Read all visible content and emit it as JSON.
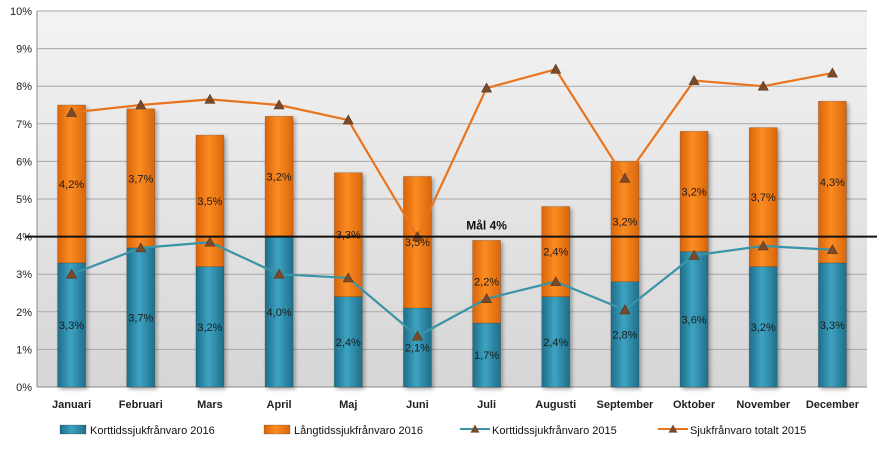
{
  "chart_data": {
    "type": "bar",
    "stacked": true,
    "categories": [
      "Januari",
      "Februari",
      "Mars",
      "April",
      "Maj",
      "Juni",
      "Juli",
      "Augusti",
      "September",
      "Oktober",
      "November",
      "December"
    ],
    "series": [
      {
        "name": "Korttidssjukfrånvaro 2016",
        "kind": "bar",
        "color": "#2e8aa8",
        "values": [
          3.3,
          3.7,
          3.2,
          4.0,
          2.4,
          2.1,
          1.7,
          2.4,
          2.8,
          3.6,
          3.2,
          3.3
        ],
        "labels": [
          "3,3%",
          "3,7%",
          "3,2%",
          "4,0%",
          "2,4%",
          "2,1%",
          "1,7%",
          "2,4%",
          "2,8%",
          "3,6%",
          "3,2%",
          "3,3%"
        ]
      },
      {
        "name": "Långtidssjukfrånvaro 2016",
        "kind": "bar",
        "color": "#f07d14",
        "values": [
          4.2,
          3.7,
          3.5,
          3.2,
          3.3,
          3.5,
          2.2,
          2.4,
          3.2,
          3.2,
          3.7,
          4.3
        ],
        "labels": [
          "4,2%",
          "3,7%",
          "3,5%",
          "3,2%",
          "3,3%",
          "3,5%",
          "2,2%",
          "2,4%",
          "3,2%",
          "3,2%",
          "3,7%",
          "4,3%"
        ]
      },
      {
        "name": "Korttidssjukfrånvaro 2015",
        "kind": "line",
        "color": "#3a93a6",
        "values": [
          3.0,
          3.7,
          3.85,
          3.0,
          2.9,
          1.35,
          2.35,
          2.8,
          2.05,
          3.5,
          3.75,
          3.65
        ]
      },
      {
        "name": "Sjukfrånvaro totalt 2015",
        "kind": "line",
        "color": "#e8741e",
        "values": [
          7.3,
          7.5,
          7.65,
          7.5,
          7.1,
          4.0,
          7.95,
          8.45,
          5.55,
          8.15,
          8.0,
          8.35
        ]
      }
    ],
    "target": {
      "value": 4,
      "label": "Mål 4%"
    },
    "ylim": [
      0,
      10
    ],
    "yticks": [
      "0%",
      "1%",
      "2%",
      "3%",
      "4%",
      "5%",
      "6%",
      "7%",
      "8%",
      "9%",
      "10%"
    ],
    "grid": true,
    "legend_position": "bottom",
    "title": "",
    "xlabel": "",
    "ylabel": ""
  }
}
